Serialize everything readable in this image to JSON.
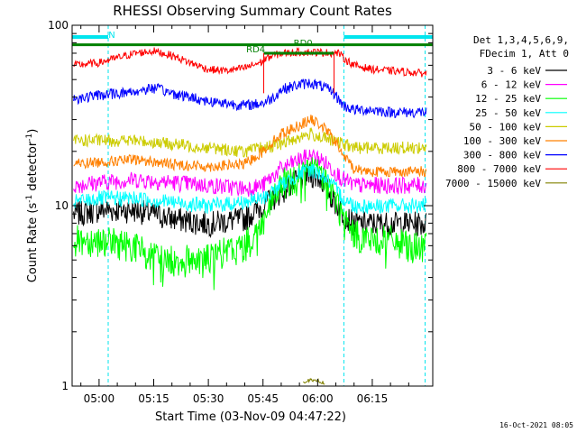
{
  "chart_data": {
    "type": "line",
    "title": "RHESSI Observing Summary Count Rates",
    "xlabel": "Start Time (03-Nov-09 04:47:22)",
    "ylabel_main": "Count Rate (s",
    "ylabel_sup": "-1",
    "ylabel_tail": " detector",
    "ylabel_close": ")",
    "y_scale": "log",
    "ylim": [
      1,
      100
    ],
    "y_ticks": [
      {
        "value": 1,
        "label": "1"
      },
      {
        "value": 10,
        "label": "10"
      },
      {
        "value": 100,
        "label": "100"
      }
    ],
    "xlim_minutes": [
      -7.4,
      91.6
    ],
    "x_ticks": [
      {
        "minutes": 0,
        "label": "05:00"
      },
      {
        "minutes": 15,
        "label": "05:15"
      },
      {
        "minutes": 30,
        "label": "05:30"
      },
      {
        "minutes": 45,
        "label": "05:45"
      },
      {
        "minutes": 60,
        "label": "06:00"
      },
      {
        "minutes": 75,
        "label": "06:15"
      }
    ],
    "legend": {
      "position": "right",
      "header": [
        "Det 1,3,4,5,6,9,",
        "FDecim 1, Att 0"
      ]
    },
    "series": [
      {
        "name": "3 - 6 keV",
        "color": "#000000",
        "x": [
          -7,
          0,
          10,
          20,
          30,
          40,
          45,
          50,
          55,
          58,
          61,
          64,
          67,
          70,
          75,
          80,
          85,
          90
        ],
        "y": [
          9.0,
          9.5,
          9.5,
          8.5,
          8.0,
          8.5,
          10,
          12,
          14,
          15,
          14,
          11,
          9,
          8,
          8,
          8,
          8,
          8
        ]
      },
      {
        "name": "6 - 12 keV",
        "color": "#ff00ff",
        "x": [
          -7,
          0,
          10,
          20,
          30,
          40,
          45,
          50,
          55,
          58,
          61,
          64,
          67,
          70,
          75,
          80,
          85,
          90
        ],
        "y": [
          13,
          13.5,
          14,
          13.5,
          13,
          12.5,
          13,
          16,
          18,
          19,
          18,
          16,
          14,
          13,
          13,
          13,
          13,
          13
        ]
      },
      {
        "name": "12 - 25 keV",
        "color": "#00ff00",
        "x": [
          -7,
          0,
          10,
          15,
          20,
          30,
          40,
          45,
          50,
          55,
          58,
          61,
          64,
          67,
          70,
          75,
          80,
          85,
          90
        ],
        "y": [
          6.5,
          6.5,
          6,
          5.2,
          5,
          5.2,
          6,
          8,
          13,
          15,
          16,
          15,
          12,
          8.5,
          7,
          6.5,
          6.5,
          6,
          6
        ]
      },
      {
        "name": "25 - 50 keV",
        "color": "#00ffff",
        "x": [
          -7,
          0,
          10,
          20,
          30,
          40,
          45,
          50,
          55,
          58,
          61,
          64,
          67,
          70,
          75,
          80,
          85,
          90
        ],
        "y": [
          10.5,
          11,
          11,
          10.5,
          10,
          10.5,
          11,
          13,
          15,
          16,
          15,
          13,
          11,
          10,
          10,
          10,
          10,
          10
        ]
      },
      {
        "name": "50 - 100 keV",
        "color": "#cccc00",
        "x": [
          -7,
          0,
          10,
          20,
          30,
          40,
          45,
          50,
          55,
          58,
          61,
          64,
          67,
          70,
          75,
          80,
          85,
          90
        ],
        "y": [
          23,
          23,
          23,
          22,
          21,
          20,
          21,
          22,
          24,
          25,
          24,
          23,
          22,
          21,
          21,
          21,
          21,
          21
        ]
      },
      {
        "name": "100 - 300 keV",
        "color": "#ff8000",
        "x": [
          -7,
          0,
          10,
          20,
          30,
          40,
          45,
          50,
          55,
          58,
          61,
          64,
          67,
          70,
          75,
          80,
          85,
          90
        ],
        "y": [
          17,
          17.5,
          18,
          17,
          16.5,
          17,
          20,
          25,
          28,
          30,
          28,
          24,
          19,
          16,
          15.5,
          15.5,
          15.5,
          15.5
        ]
      },
      {
        "name": "300 - 800 keV",
        "color": "#0000ff",
        "x": [
          -7,
          0,
          10,
          15,
          20,
          30,
          40,
          45,
          48,
          50,
          55,
          58,
          61,
          64,
          67,
          70,
          75,
          80,
          85,
          90
        ],
        "y": [
          39,
          41,
          43,
          45,
          42,
          38,
          36,
          37,
          40,
          44,
          47,
          48,
          46,
          43,
          36,
          34,
          34,
          33,
          33,
          33
        ]
      },
      {
        "name": "800 - 7000 keV",
        "color": "#ff0000",
        "x": [
          -7,
          0,
          10,
          15,
          20,
          25,
          30,
          35,
          40,
          45,
          46,
          50,
          55,
          60,
          66,
          67,
          70,
          75,
          80,
          85,
          90
        ],
        "y": [
          60,
          62,
          70,
          72,
          68,
          62,
          57,
          56,
          58,
          63,
          66,
          70,
          71,
          71,
          70,
          66,
          60,
          57,
          56,
          55,
          54
        ]
      },
      {
        "name": "7000 - 15000 keV",
        "color": "#808000",
        "x": [
          56,
          57,
          58,
          59,
          60,
          61,
          62
        ],
        "y": [
          1.05,
          1.07,
          1.08,
          1.06,
          1.08,
          1.05,
          1.04
        ]
      }
    ],
    "annotations": [
      {
        "text": "N",
        "x_minutes": 3.5
      },
      {
        "text": "RD4",
        "x_minutes": 43
      },
      {
        "text": "RD0",
        "x_minutes": 56
      }
    ],
    "state_bars": [
      {
        "name": "attenuator-rate-bar",
        "color": "#008000",
        "x_start": -7.4,
        "x_end": 91.6,
        "y": 78
      },
      {
        "name": "rd-state-bar",
        "color": "#008000",
        "x_start": 45.2,
        "x_end": 64.5,
        "y": 70
      }
    ],
    "night_intervals": [
      {
        "x_start": -7.4,
        "x_end": 2.5
      },
      {
        "x_start": 67.2,
        "x_end": 91.6
      }
    ]
  },
  "footer": {
    "date_stamp": "16-Oct-2021 08:05"
  },
  "colors": {
    "night": "#00e5ee",
    "axis": "#000000",
    "background": "#ffffff"
  }
}
